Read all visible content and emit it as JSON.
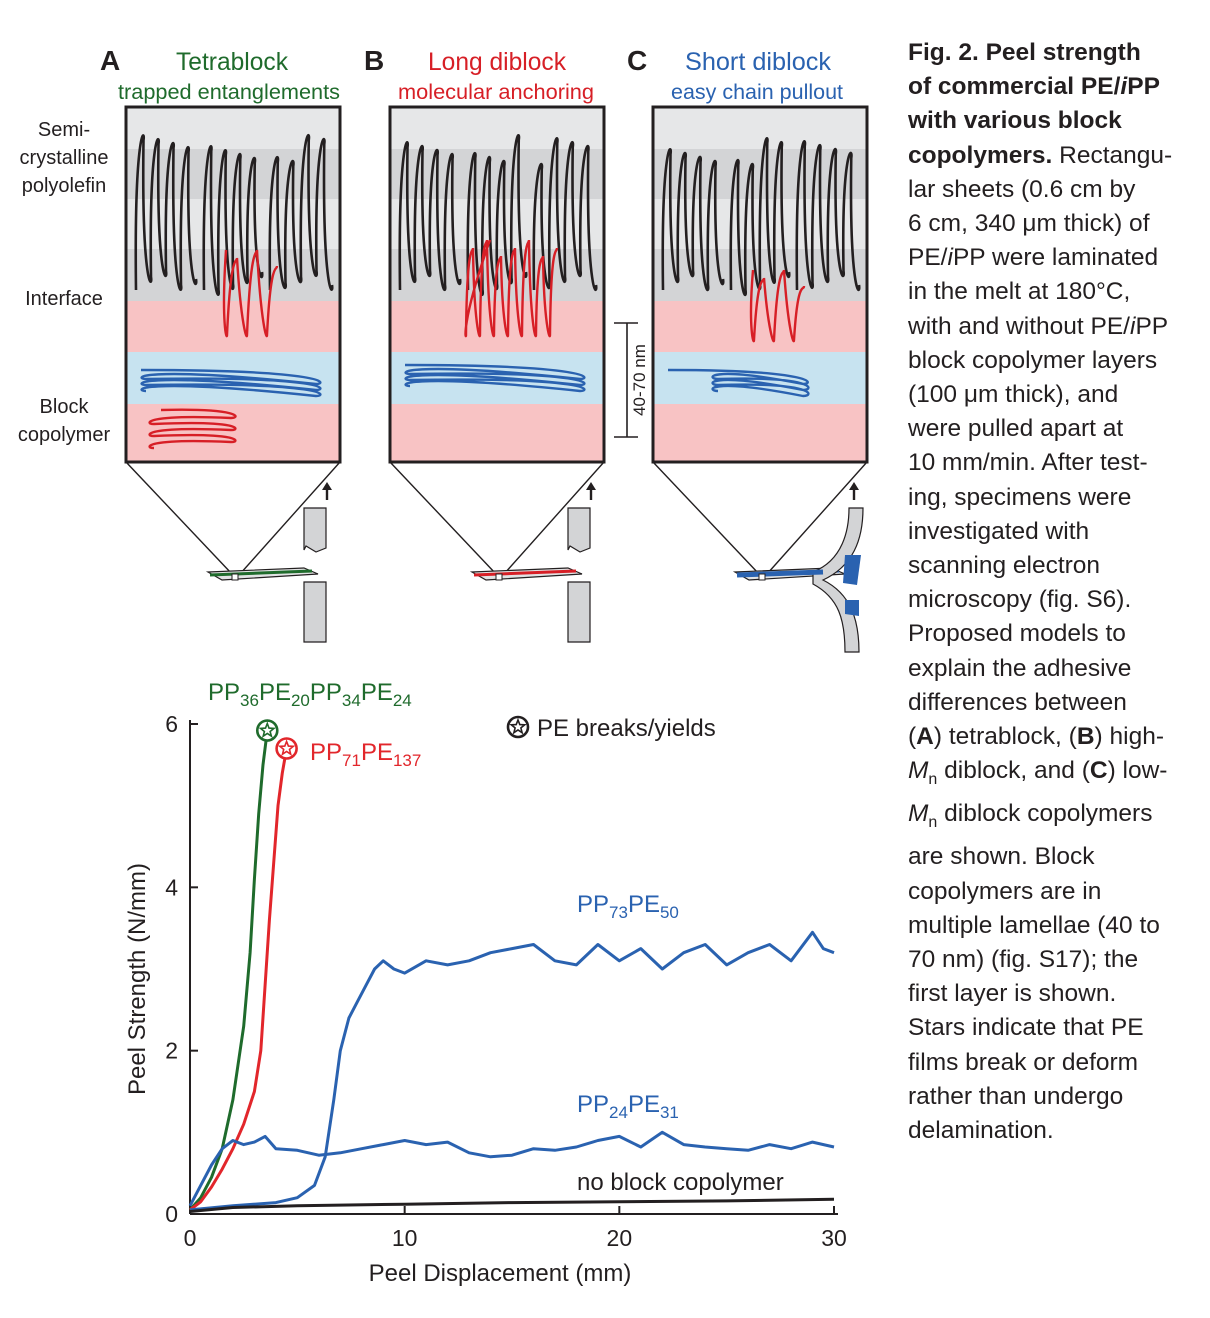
{
  "panels": [
    {
      "letter": "A",
      "title": "Tetrablock",
      "subtitle": "trapped entanglements",
      "color": "#1f6b2c"
    },
    {
      "letter": "B",
      "title": "Long diblock",
      "subtitle": "molecular anchoring",
      "color": "#d71f26"
    },
    {
      "letter": "C",
      "title": "Short diblock",
      "subtitle": "easy chain pullout",
      "color": "#2a62b0"
    }
  ],
  "side_labels": {
    "semi": [
      "Semi-",
      "crystalline",
      "polyolefin"
    ],
    "interface": "Interface",
    "block": [
      "Block",
      "copolymer"
    ]
  },
  "scale_label": "40-70 nm",
  "colors": {
    "crystal_dark": "#d3d4d6",
    "crystal_light": "#e6e7e8",
    "interface_red": "#f8c3c4",
    "interface_blue": "#c7e3f0",
    "black": "#231f20"
  },
  "chart_data": {
    "type": "line",
    "xlabel": "Peel Displacement (mm)",
    "ylabel": "Peel Strength (N/mm)",
    "xlim": [
      0,
      30
    ],
    "ylim": [
      0,
      6
    ],
    "xticks": [
      "0",
      "10",
      "20",
      "30"
    ],
    "yticks": [
      "0",
      "2",
      "4",
      "6"
    ],
    "legend": "PE breaks/yields",
    "series": [
      {
        "label_parts": [
          [
            "PP",
            ""
          ],
          [
            "36",
            "sub"
          ],
          [
            "PE",
            ""
          ],
          [
            "20",
            "sub"
          ],
          [
            "PP",
            ""
          ],
          [
            "34",
            "sub"
          ],
          [
            "PE",
            ""
          ],
          [
            "24",
            "sub"
          ]
        ],
        "color": "#1f6b2c",
        "end": "star",
        "x": [
          0,
          0.5,
          1,
          1.5,
          2,
          2.5,
          2.8,
          3.0,
          3.2,
          3.4,
          3.6
        ],
        "y": [
          0.05,
          0.2,
          0.45,
          0.8,
          1.4,
          2.3,
          3.2,
          4.1,
          4.9,
          5.5,
          5.92
        ]
      },
      {
        "label_parts": [
          [
            "PP",
            ""
          ],
          [
            "71",
            "sub"
          ],
          [
            "PE",
            ""
          ],
          [
            "137",
            "sub"
          ]
        ],
        "color": "#e2262b",
        "end": "star",
        "x": [
          0,
          0.5,
          1,
          1.5,
          2,
          2.5,
          3.0,
          3.3,
          3.5,
          3.7,
          3.9,
          4.1,
          4.3,
          4.5
        ],
        "y": [
          0.05,
          0.15,
          0.33,
          0.55,
          0.8,
          1.1,
          1.5,
          2.0,
          2.8,
          3.6,
          4.3,
          5.0,
          5.4,
          5.7
        ]
      },
      {
        "label_parts": [
          [
            "PP",
            ""
          ],
          [
            "73",
            "sub"
          ],
          [
            "PE",
            ""
          ],
          [
            "50",
            "sub"
          ]
        ],
        "color": "#2a62b0",
        "end": "none",
        "x": [
          0,
          2,
          4,
          5,
          5.8,
          6.3,
          6.7,
          7.0,
          7.4,
          7.8,
          8.2,
          8.6,
          9.0,
          9.5,
          10,
          11,
          12,
          13,
          14,
          15,
          16,
          17,
          18,
          19,
          20,
          21,
          22,
          23,
          24,
          25,
          26,
          27,
          28,
          29,
          29.5,
          30
        ],
        "y": [
          0.05,
          0.1,
          0.14,
          0.2,
          0.35,
          0.7,
          1.4,
          2.0,
          2.4,
          2.6,
          2.8,
          3.0,
          3.1,
          3.0,
          2.95,
          3.1,
          3.05,
          3.1,
          3.2,
          3.25,
          3.3,
          3.1,
          3.05,
          3.3,
          3.1,
          3.25,
          3.0,
          3.2,
          3.3,
          3.05,
          3.2,
          3.3,
          3.1,
          3.45,
          3.25,
          3.2
        ]
      },
      {
        "label_parts": [
          [
            "PP",
            ""
          ],
          [
            "24",
            "sub"
          ],
          [
            "PE",
            ""
          ],
          [
            "31",
            "sub"
          ]
        ],
        "color": "#2a62b0",
        "end": "none",
        "x": [
          0,
          0.5,
          1,
          1.5,
          2,
          2.5,
          3,
          3.5,
          4,
          5,
          6,
          7,
          8,
          9,
          10,
          11,
          12,
          13,
          14,
          15,
          16,
          17,
          18,
          19,
          20,
          21,
          22,
          23,
          24,
          25,
          26,
          27,
          28,
          29,
          30
        ],
        "y": [
          0.1,
          0.35,
          0.6,
          0.8,
          0.9,
          0.85,
          0.88,
          0.95,
          0.8,
          0.78,
          0.72,
          0.75,
          0.8,
          0.85,
          0.9,
          0.85,
          0.88,
          0.75,
          0.7,
          0.72,
          0.8,
          0.78,
          0.82,
          0.9,
          0.95,
          0.82,
          1.0,
          0.85,
          0.82,
          0.8,
          0.78,
          0.85,
          0.8,
          0.88,
          0.82
        ]
      },
      {
        "label": "no block copolymer",
        "color": "#231f20",
        "end": "none",
        "x": [
          0,
          2,
          5,
          10,
          15,
          20,
          25,
          30
        ],
        "y": [
          0.03,
          0.08,
          0.1,
          0.12,
          0.14,
          0.15,
          0.16,
          0.18
        ]
      }
    ]
  },
  "caption": {
    "lines": [
      [
        {
          "t": "Fig. 2. Peel strength",
          "s": "bold"
        }
      ],
      [
        {
          "t": "of commercial PE/",
          "s": "bold"
        },
        {
          "t": "i",
          "s": "bold ital"
        },
        {
          "t": "PP",
          "s": "bold"
        }
      ],
      [
        {
          "t": "with various block",
          "s": "bold"
        }
      ],
      [
        {
          "t": "copolymers.",
          "s": "bold"
        },
        {
          "t": " Rectangu-",
          "s": ""
        }
      ],
      [
        {
          "t": "lar sheets (0.6 cm by",
          "s": ""
        }
      ],
      [
        {
          "t": "6 cm, 340 μm thick) of",
          "s": ""
        }
      ],
      [
        {
          "t": "PE/",
          "s": ""
        },
        {
          "t": "i",
          "s": "ital"
        },
        {
          "t": "PP were laminated",
          "s": ""
        }
      ],
      [
        {
          "t": "in the melt at 180°C,",
          "s": ""
        }
      ],
      [
        {
          "t": "with and without PE/",
          "s": ""
        },
        {
          "t": "i",
          "s": "ital"
        },
        {
          "t": "PP",
          "s": ""
        }
      ],
      [
        {
          "t": "block copolymer layers",
          "s": ""
        }
      ],
      [
        {
          "t": "(100 μm thick), and",
          "s": ""
        }
      ],
      [
        {
          "t": "were pulled apart at",
          "s": ""
        }
      ],
      [
        {
          "t": "10 mm/min. After test-",
          "s": ""
        }
      ],
      [
        {
          "t": "ing, specimens were",
          "s": ""
        }
      ],
      [
        {
          "t": "investigated with",
          "s": ""
        }
      ],
      [
        {
          "t": "scanning electron",
          "s": ""
        }
      ],
      [
        {
          "t": "microscopy (fig. S6).",
          "s": ""
        }
      ],
      [
        {
          "t": "Proposed models to",
          "s": ""
        }
      ],
      [
        {
          "t": "explain the adhesive",
          "s": ""
        }
      ],
      [
        {
          "t": "differences between",
          "s": ""
        }
      ],
      [
        {
          "t": "(",
          "s": ""
        },
        {
          "t": "A",
          "s": "bold"
        },
        {
          "t": ") tetrablock, (",
          "s": ""
        },
        {
          "t": "B",
          "s": "bold"
        },
        {
          "t": ") high-",
          "s": ""
        }
      ],
      [
        {
          "t": "M",
          "s": "ital"
        },
        {
          "t": "n",
          "s": "sub"
        },
        {
          "t": " diblock, and (",
          "s": ""
        },
        {
          "t": "C",
          "s": "bold"
        },
        {
          "t": ") low-",
          "s": ""
        }
      ],
      [
        {
          "t": "M",
          "s": "ital"
        },
        {
          "t": "n",
          "s": "sub"
        },
        {
          "t": " diblock copolymers",
          "s": ""
        }
      ],
      [
        {
          "t": "are shown. Block",
          "s": ""
        }
      ],
      [
        {
          "t": "copolymers are in",
          "s": ""
        }
      ],
      [
        {
          "t": "multiple lamellae (40 to",
          "s": ""
        }
      ],
      [
        {
          "t": "70 nm) (fig. S17); the",
          "s": ""
        }
      ],
      [
        {
          "t": "first layer is shown.",
          "s": ""
        }
      ],
      [
        {
          "t": "Stars indicate that PE",
          "s": ""
        }
      ],
      [
        {
          "t": "films break or deform",
          "s": ""
        }
      ],
      [
        {
          "t": "rather than undergo",
          "s": ""
        }
      ],
      [
        {
          "t": "delamination.",
          "s": ""
        }
      ]
    ]
  }
}
